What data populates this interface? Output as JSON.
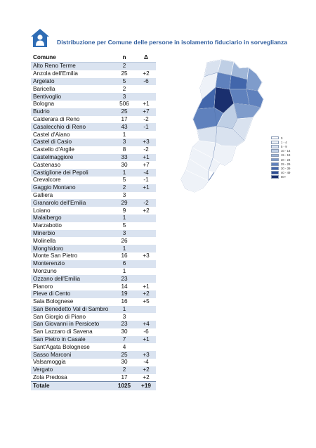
{
  "header": {
    "title": "Distribuzione per Comune delle persone in isolamento fiduciario in sorveglianza",
    "icon": "house-person-icon"
  },
  "table": {
    "columns": [
      "Comune",
      "n",
      "Δ"
    ],
    "rows": [
      [
        "Alto Reno Terme",
        "2",
        ""
      ],
      [
        "Anzola dell'Emilia",
        "25",
        "+2"
      ],
      [
        "Argelato",
        "5",
        "-6"
      ],
      [
        "Baricella",
        "2",
        ""
      ],
      [
        "Bentivoglio",
        "3",
        ""
      ],
      [
        "Bologna",
        "506",
        "+1"
      ],
      [
        "Budrio",
        "25",
        "+7"
      ],
      [
        "Calderara di Reno",
        "17",
        "-2"
      ],
      [
        "Casalecchio di Reno",
        "43",
        "-1"
      ],
      [
        "Castel d'Aiano",
        "1",
        ""
      ],
      [
        "Castel di Casio",
        "3",
        "+3"
      ],
      [
        "Castello d'Argile",
        "8",
        "-2"
      ],
      [
        "Castelmaggiore",
        "33",
        "+1"
      ],
      [
        "Castenaso",
        "30",
        "+7"
      ],
      [
        "Castiglione dei Pepoli",
        "1",
        "-4"
      ],
      [
        "Crevalcore",
        "5",
        "-1"
      ],
      [
        "Gaggio Montano",
        "2",
        "+1"
      ],
      [
        "Galliera",
        "3",
        ""
      ],
      [
        "Granarolo dell'Emilia",
        "29",
        "-2"
      ],
      [
        "Loiano",
        "9",
        "+2"
      ],
      [
        "Malalbergo",
        "1",
        ""
      ],
      [
        "Marzabotto",
        "5",
        ""
      ],
      [
        "Minerbio",
        "3",
        ""
      ],
      [
        "Molinella",
        "26",
        ""
      ],
      [
        "Monghidoro",
        "1",
        ""
      ],
      [
        "Monte San Pietro",
        "16",
        "+3"
      ],
      [
        "Monterenzio",
        "6",
        ""
      ],
      [
        "Monzuno",
        "1",
        ""
      ],
      [
        "Ozzano dell'Emilia",
        "23",
        ""
      ],
      [
        "Pianoro",
        "14",
        "+1"
      ],
      [
        "Pieve di Cento",
        "19",
        "+2"
      ],
      [
        "Sala Bolognese",
        "16",
        "+5"
      ],
      [
        "San Benedetto Val di Sambro",
        "1",
        ""
      ],
      [
        "San Giorgio di Piano",
        "3",
        ""
      ],
      [
        "San Giovanni in Persiceto",
        "23",
        "+4"
      ],
      [
        "San Lazzaro di Savena",
        "30",
        "-6"
      ],
      [
        "San Pietro in Casale",
        "7",
        "+1"
      ],
      [
        "Sant'Agata Bolognese",
        "4",
        ""
      ],
      [
        "Sasso Marconi",
        "25",
        "+3"
      ],
      [
        "Valsamoggia",
        "30",
        "-4"
      ],
      [
        "Vergato",
        "2",
        "+2"
      ],
      [
        "Zola Predosa",
        "17",
        "+2"
      ]
    ],
    "total": [
      "Totale",
      "1025",
      "+19"
    ]
  },
  "legend": {
    "items": [
      {
        "label": "0",
        "color": "#ffffff"
      },
      {
        "label": "1 - 4",
        "color": "#eef2f8"
      },
      {
        "label": "5 - 9",
        "color": "#d9e2ef"
      },
      {
        "label": "10 - 14",
        "color": "#bfcfe5"
      },
      {
        "label": "15 - 19",
        "color": "#9fb6d8"
      },
      {
        "label": "20 - 24",
        "color": "#7f9ccb"
      },
      {
        "label": "25 - 29",
        "color": "#5f81bd"
      },
      {
        "label": "30 - 39",
        "color": "#4266ab"
      },
      {
        "label": "40 - 49",
        "color": "#2c4c93"
      },
      {
        "label": "50+",
        "color": "#1a2f6e"
      }
    ]
  }
}
